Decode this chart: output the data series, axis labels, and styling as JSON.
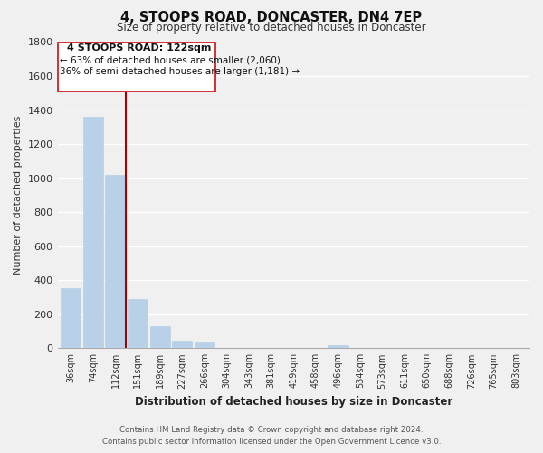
{
  "title": "4, STOOPS ROAD, DONCASTER, DN4 7EP",
  "subtitle": "Size of property relative to detached houses in Doncaster",
  "xlabel": "Distribution of detached houses by size in Doncaster",
  "ylabel": "Number of detached properties",
  "bar_color": "#b8d0e8",
  "marker_color": "#aa0000",
  "categories": [
    "36sqm",
    "74sqm",
    "112sqm",
    "151sqm",
    "189sqm",
    "227sqm",
    "266sqm",
    "304sqm",
    "343sqm",
    "381sqm",
    "419sqm",
    "458sqm",
    "496sqm",
    "534sqm",
    "573sqm",
    "611sqm",
    "650sqm",
    "688sqm",
    "726sqm",
    "765sqm",
    "803sqm"
  ],
  "values": [
    355,
    1360,
    1020,
    290,
    130,
    45,
    35,
    0,
    0,
    0,
    0,
    0,
    20,
    0,
    0,
    0,
    0,
    0,
    0,
    0,
    0
  ],
  "ylim": [
    0,
    1800
  ],
  "yticks": [
    0,
    200,
    400,
    600,
    800,
    1000,
    1200,
    1400,
    1600,
    1800
  ],
  "annotation_title": "4 STOOPS ROAD: 122sqm",
  "annotation_line1": "← 63% of detached houses are smaller (2,060)",
  "annotation_line2": "36% of semi-detached houses are larger (1,181) →",
  "footer_line1": "Contains HM Land Registry data © Crown copyright and database right 2024.",
  "footer_line2": "Contains public sector information licensed under the Open Government Licence v3.0.",
  "background_color": "#f0f0f0",
  "grid_color": "#ffffff",
  "box_edge_color": "#cc2222"
}
